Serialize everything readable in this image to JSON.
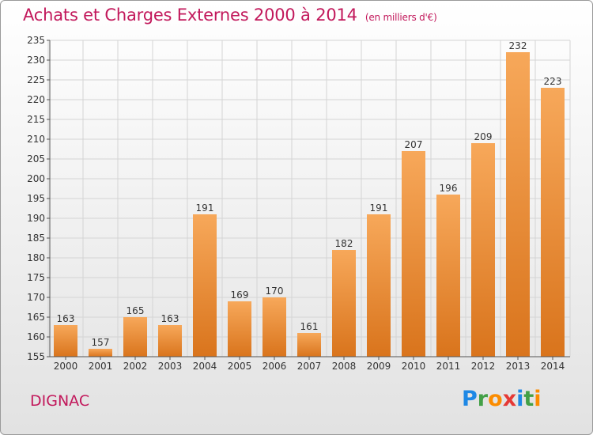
{
  "title": "Achats et Charges Externes 2000 à 2014",
  "subtitle": "(en milliers d'€)",
  "commune": "DIGNAC",
  "logo": {
    "letters": [
      "P",
      "r",
      "o",
      "x",
      "i",
      "t",
      "i"
    ],
    "colors": [
      "#1e88e5",
      "#43a047",
      "#fb8c00",
      "#e53935",
      "#1e88e5",
      "#43a047",
      "#fb8c00"
    ]
  },
  "colors": {
    "bar_light": "#f7a85a",
    "bar_dark": "#d9741c",
    "title": "#c2185b"
  },
  "chart_data": {
    "type": "bar",
    "categories": [
      "2000",
      "2001",
      "2002",
      "2003",
      "2004",
      "2005",
      "2006",
      "2007",
      "2008",
      "2009",
      "2010",
      "2011",
      "2012",
      "2013",
      "2014"
    ],
    "values": [
      163,
      157,
      165,
      163,
      191,
      169,
      170,
      161,
      182,
      191,
      207,
      196,
      209,
      232,
      223
    ],
    "ylim": [
      155,
      235
    ],
    "yticks": [
      155,
      160,
      165,
      170,
      175,
      180,
      185,
      190,
      195,
      200,
      205,
      210,
      215,
      220,
      225,
      230,
      235
    ],
    "grid": true
  }
}
